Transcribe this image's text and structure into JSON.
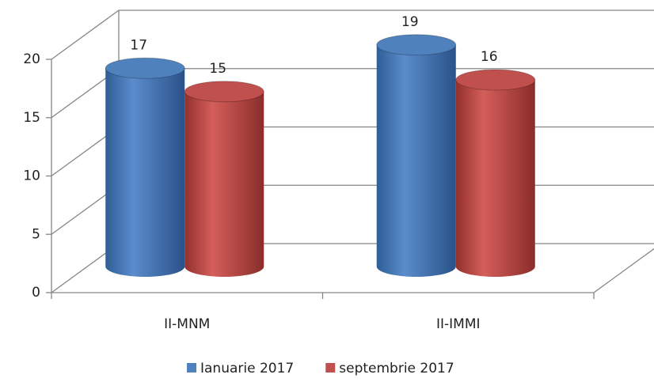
{
  "chart_data": {
    "type": "bar",
    "categories": [
      "II-MNM",
      "II-IMMI"
    ],
    "series": [
      {
        "name": "Ianuarie 2017",
        "color": "#4f81bd",
        "values": [
          17,
          19
        ]
      },
      {
        "name": "septembrie 2017",
        "color": "#c0504d",
        "values": [
          15,
          16
        ]
      }
    ],
    "ylim": [
      0,
      20
    ],
    "yticks": [
      0,
      5,
      10,
      15,
      20
    ],
    "grid": true,
    "legend": "bottom"
  }
}
